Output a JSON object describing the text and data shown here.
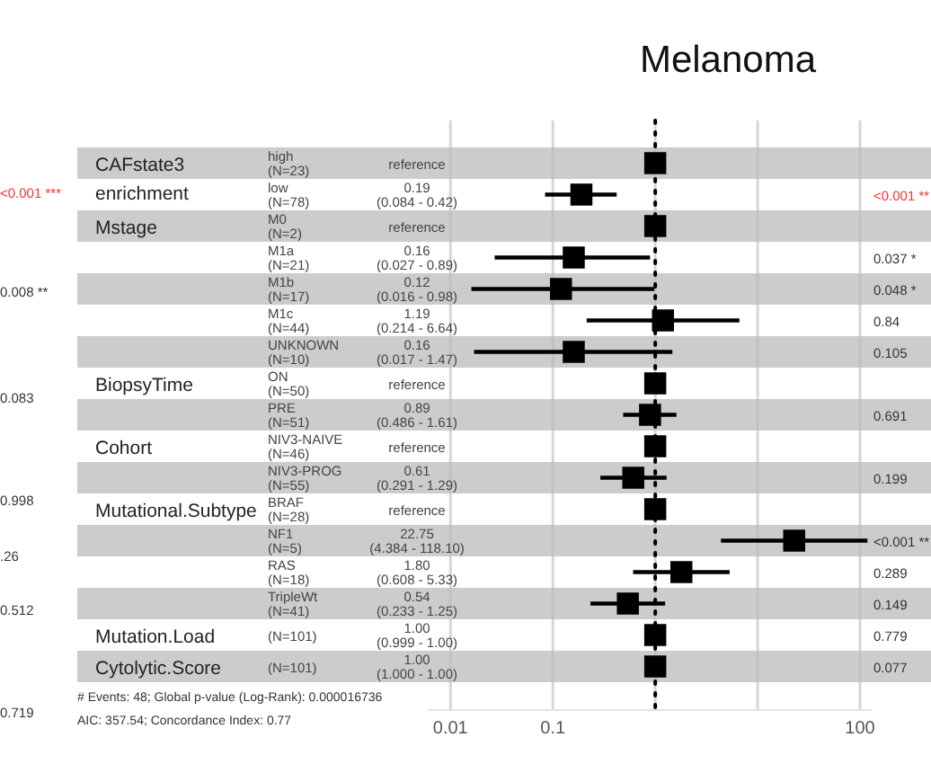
{
  "chart_data": [
    {
      "type": "scatter",
      "orientation": "horizontal",
      "title": "Melanoma",
      "marker": "square",
      "log": "x",
      "grid": "x",
      "color": "#000000",
      "categories": [
        "high\n(N=23)",
        "low\n(N=78)",
        "M0\n(N=2)",
        "M1a\n(N=21)",
        "M1b\n(N=17)",
        "M1c\n(N=44)",
        "UNKNOWN\n(N=10)",
        "ON\n(N=50)",
        "PRE\n(N=51)",
        "NIV3-NAIVE\n(N=46)",
        "NIV3-PROG\n(N=55)",
        "BRAF\n(N=28)",
        "NF1\n(N=5)",
        "RAS\n(N=18)",
        "TripleWt\n(N=41)",
        "(N=101)",
        "(N=101)"
      ],
      "values": [
        1,
        0.19,
        1,
        0.16,
        0.12,
        1.19,
        0.16,
        1,
        0.89,
        1,
        0.61,
        1,
        22.75,
        1.8,
        0.54,
        1.0,
        1.0
      ],
      "errors": [
        null,
        [
          0.084,
          0.42
        ],
        null,
        [
          0.027,
          0.89
        ],
        [
          0.016,
          0.98
        ],
        [
          0.214,
          6.64
        ],
        [
          0.017,
          1.47
        ],
        null,
        [
          0.486,
          1.61
        ],
        null,
        [
          0.291,
          1.29
        ],
        null,
        [
          4.384,
          118.1
        ],
        [
          0.608,
          5.33
        ],
        [
          0.233,
          1.25
        ],
        null,
        null
      ],
      "xlim": [
        0.006,
        130
      ],
      "xticks": [
        0.01,
        0.1,
        {
          "value": 1,
          "label": null
        },
        {
          "value": 10,
          "label": null
        },
        100
      ],
      "ref_lines": [
        {
          "axis": "x",
          "value": 1,
          "line_style": "dotted",
          "color": "#000000"
        }
      ]
    },
    {
      "type": "other",
      "annotations": [
        "CAFstate3\nenrichment",
        "Mstage",
        "BiopsyTime",
        "Cohort",
        "Mutational.Subtype",
        "Mutation.Load",
        "Cytolytic.Score",
        "reference",
        "0.19\n(0.084 -  0.42)",
        "reference",
        "0.16\n(0.027 -  0.89)",
        "0.12\n(0.016 -  0.98)",
        "1.19\n(0.214 -  6.64)",
        "0.16\n(0.017 -  1.47)",
        "reference",
        "0.89\n(0.486 -  1.61)",
        "reference",
        "0.61\n(0.291 -  1.29)",
        "reference",
        "22.75\n(4.384 - 118.10)",
        "1.80\n(0.608 -  5.33)",
        "0.54\n(0.233 -  1.25)",
        "1.00\n(0.999 -  1.00)",
        "1.00\n(1.000 -  1.00)",
        "<0.001 **",
        "0.037 *",
        "0.048 *",
        "0.84",
        "0.105",
        "0.691",
        "0.199",
        "<0.001 **",
        "0.289",
        "0.149",
        "0.779",
        "0.077",
        "# Events: 48; Global p-value (Log-Rank): 0.000016736",
        "AIC: 357.54; Concordance Index: 0.77",
        "<0.001 ***",
        "0.008 **",
        "0.083",
        "0.998",
        ".26",
        "0.512",
        "0.719"
      ]
    }
  ]
}
